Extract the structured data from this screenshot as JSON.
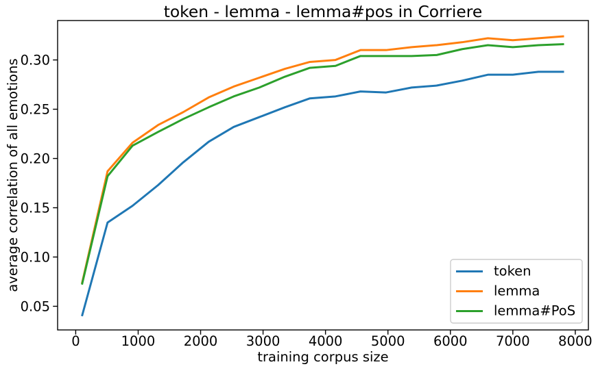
{
  "chart_data": {
    "type": "line",
    "title": "token - lemma - lemma#pos in Corriere",
    "xlabel": "training corpus size",
    "ylabel": "average correlation of all emotions",
    "xlim": [
      -290,
      8210
    ],
    "ylim": [
      0.026,
      0.34
    ],
    "xticks": [
      0,
      1000,
      2000,
      3000,
      4000,
      5000,
      6000,
      7000,
      8000
    ],
    "xtick_labels": [
      "0",
      "1000",
      "2000",
      "3000",
      "4000",
      "5000",
      "6000",
      "7000",
      "8000"
    ],
    "yticks": [
      0.05,
      0.1,
      0.15,
      0.2,
      0.25,
      0.3
    ],
    "ytick_labels": [
      "0.05",
      "0.10",
      "0.15",
      "0.20",
      "0.25",
      "0.30"
    ],
    "grid": false,
    "legend_placement": "lower-right",
    "x": [
      100,
      510,
      910,
      1320,
      1720,
      2130,
      2530,
      2940,
      3350,
      3750,
      4160,
      4560,
      4970,
      5380,
      5780,
      6190,
      6600,
      7000,
      7410,
      7820
    ],
    "series": [
      {
        "name": "token",
        "color": "#1f77b4",
        "values": [
          0.04,
          0.135,
          0.152,
          0.173,
          0.196,
          0.217,
          0.232,
          0.242,
          0.252,
          0.261,
          0.263,
          0.268,
          0.267,
          0.272,
          0.274,
          0.279,
          0.285,
          0.285,
          0.288,
          0.288
        ]
      },
      {
        "name": "lemma",
        "color": "#ff7f0e",
        "values": [
          0.073,
          0.187,
          0.216,
          0.234,
          0.247,
          0.262,
          0.273,
          0.282,
          0.291,
          0.298,
          0.3,
          0.31,
          0.31,
          0.313,
          0.315,
          0.318,
          0.322,
          0.32,
          0.322,
          0.324
        ]
      },
      {
        "name": "lemma#PoS",
        "color": "#2ca02c",
        "values": [
          0.072,
          0.182,
          0.213,
          0.227,
          0.24,
          0.252,
          0.263,
          0.272,
          0.283,
          0.292,
          0.294,
          0.304,
          0.304,
          0.304,
          0.305,
          0.311,
          0.315,
          0.313,
          0.315,
          0.316
        ]
      }
    ]
  }
}
